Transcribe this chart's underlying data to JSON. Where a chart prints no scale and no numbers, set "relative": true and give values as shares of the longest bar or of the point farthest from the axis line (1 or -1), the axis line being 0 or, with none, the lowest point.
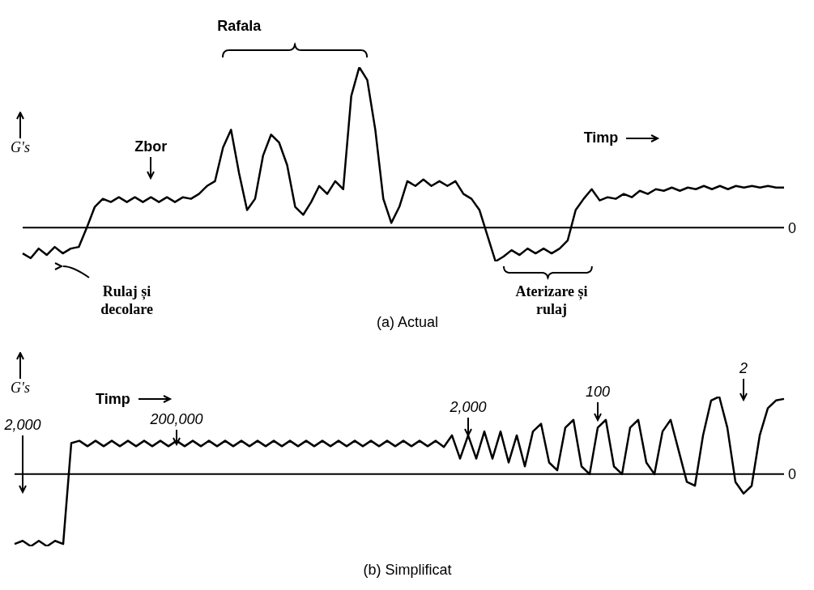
{
  "chart_data": [
    {
      "type": "line",
      "title": "(a) Actual",
      "xlabel": "Timp",
      "ylabel": "G's",
      "relative": true,
      "grid": false,
      "legend": false,
      "marker": "none",
      "line_style": "solid",
      "annotations": [
        "Zbor",
        "Rafala",
        "Rulaj și decolare",
        "Aterizare și rulaj"
      ],
      "ref_lines": [
        {
          "axis": "y",
          "value": 0,
          "label": "0",
          "color": "#000000"
        }
      ],
      "categories": [
        null,
        null,
        null,
        null,
        null,
        null,
        null,
        null,
        null,
        null,
        null,
        null,
        null,
        null,
        null,
        null,
        null,
        null,
        null,
        null,
        null,
        null,
        null,
        null,
        null,
        null,
        null,
        null,
        null,
        null,
        null,
        null,
        null,
        null,
        null,
        null,
        null,
        null,
        null,
        null,
        null,
        null,
        null,
        null,
        null,
        null,
        null,
        null,
        null,
        null,
        null,
        null,
        null,
        null,
        null,
        null,
        null,
        null,
        null,
        null,
        null,
        null,
        null,
        null,
        null,
        null,
        null,
        null,
        null,
        null,
        null,
        null,
        null,
        null,
        null,
        null,
        null,
        null,
        null,
        null,
        null,
        null,
        null,
        null,
        null,
        null,
        null,
        null,
        null,
        null,
        null,
        null,
        null,
        null,
        null,
        null
      ],
      "series": [
        {
          "color": "#000000",
          "values": [
            -0.16,
            -0.19,
            -0.13,
            -0.17,
            -0.12,
            -0.16,
            -0.13,
            -0.12,
            0,
            0.13,
            0.18,
            0.16,
            0.19,
            0.16,
            0.19,
            0.16,
            0.19,
            0.16,
            0.19,
            0.16,
            0.19,
            0.18,
            0.21,
            0.26,
            0.29,
            0.5,
            0.61,
            0.34,
            0.11,
            0.18,
            0.45,
            0.58,
            0.53,
            0.39,
            0.13,
            0.08,
            0.16,
            0.26,
            0.21,
            0.29,
            0.24,
            0.82,
            1,
            0.92,
            0.61,
            0.18,
            0.03,
            0.13,
            0.29,
            0.26,
            0.3,
            0.26,
            0.29,
            0.26,
            0.29,
            0.21,
            0.18,
            0.11,
            -0.05,
            -0.21,
            -0.18,
            -0.14,
            -0.17,
            -0.13,
            -0.16,
            -0.13,
            -0.16,
            -0.13,
            -0.08,
            0.11,
            0.18,
            0.24,
            0.17,
            0.19,
            0.18,
            0.21,
            0.19,
            0.23,
            0.21,
            0.24,
            0.23,
            0.25,
            0.23,
            0.25,
            0.24,
            0.26,
            0.24,
            0.26,
            0.24,
            0.26,
            0.25,
            0.26,
            0.25,
            0.26,
            0.25,
            0.25
          ]
        }
      ]
    },
    {
      "type": "line",
      "title": "(b) Simplificat",
      "xlabel": "Timp",
      "ylabel": "G's",
      "relative": true,
      "grid": false,
      "legend": false,
      "marker": "none",
      "line_style": "solid",
      "annotations": [
        "2,000",
        "200,000",
        "2,000",
        "100",
        "2"
      ],
      "ref_lines": [
        {
          "axis": "y",
          "value": 0,
          "label": "0",
          "color": "#000000"
        }
      ],
      "categories": [
        null,
        null,
        null,
        null,
        null,
        null,
        null,
        null,
        null,
        null,
        null,
        null,
        null,
        null,
        null,
        null,
        null,
        null,
        null,
        null,
        null,
        null,
        null,
        null,
        null,
        null,
        null,
        null,
        null,
        null,
        null,
        null,
        null,
        null,
        null,
        null,
        null,
        null,
        null,
        null,
        null,
        null,
        null,
        null,
        null,
        null,
        null,
        null,
        null,
        null,
        null,
        null,
        null,
        null,
        null,
        null,
        null,
        null,
        null,
        null,
        null,
        null,
        null,
        null,
        null,
        null,
        null,
        null,
        null,
        null,
        null,
        null,
        null,
        null,
        null,
        null,
        null,
        null,
        null,
        null,
        null,
        null,
        null,
        null,
        null,
        null,
        null,
        null,
        null,
        null,
        null,
        null,
        null,
        null,
        null,
        null
      ],
      "series": [
        {
          "color": "#000000",
          "values": [
            -0.9,
            -0.86,
            -0.93,
            -0.86,
            -0.93,
            -0.86,
            -0.9,
            0.4,
            0.43,
            0.36,
            0.43,
            0.36,
            0.43,
            0.36,
            0.43,
            0.36,
            0.43,
            0.36,
            0.43,
            0.36,
            0.43,
            0.36,
            0.43,
            0.36,
            0.43,
            0.36,
            0.43,
            0.36,
            0.43,
            0.36,
            0.43,
            0.36,
            0.43,
            0.36,
            0.43,
            0.36,
            0.43,
            0.36,
            0.43,
            0.36,
            0.43,
            0.36,
            0.43,
            0.36,
            0.43,
            0.36,
            0.43,
            0.36,
            0.43,
            0.36,
            0.43,
            0.36,
            0.43,
            0.35,
            0.5,
            0.2,
            0.5,
            0.2,
            0.55,
            0.2,
            0.55,
            0.15,
            0.5,
            0.1,
            0.55,
            0.65,
            0.15,
            0.05,
            0.6,
            0.7,
            0.1,
            0,
            0.6,
            0.7,
            0.1,
            0,
            0.6,
            0.7,
            0.15,
            0,
            0.55,
            0.7,
            0.3,
            -0.1,
            -0.15,
            0.5,
            0.95,
            1,
            0.6,
            -0.1,
            -0.25,
            -0.15,
            0.5,
            0.85,
            0.95,
            0.97
          ]
        }
      ]
    }
  ]
}
